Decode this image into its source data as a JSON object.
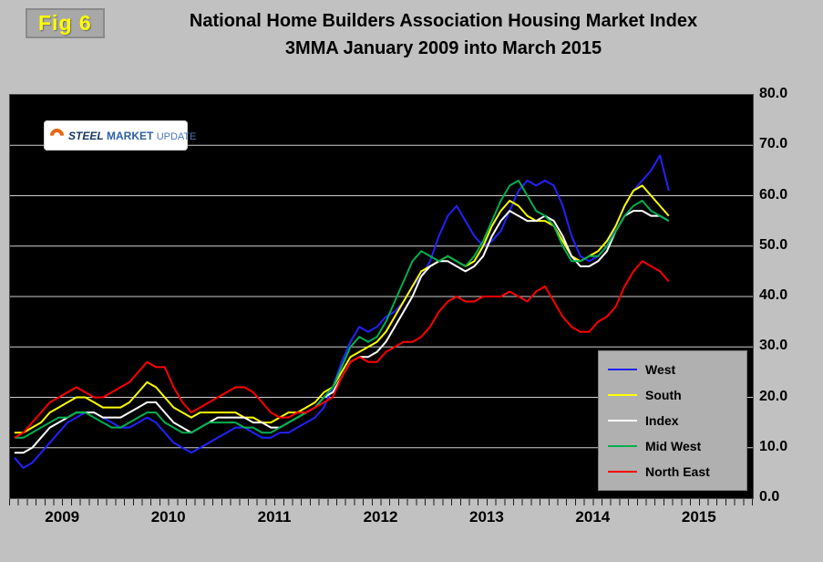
{
  "figure_label": "Fig 6",
  "title_line1": "National Home Builders Association Housing Market Index",
  "title_line2": "3MMA January 2009 into March 2015",
  "logo": {
    "word1": "STEEL",
    "word2": "MARKET",
    "word3": "UPDATE"
  },
  "colors": {
    "background": "#c1c1c1",
    "plot_background": "#000000",
    "gridline": "#cfcfcf",
    "west": "#2222ff",
    "south": "#ffff00",
    "index": "#ffffff",
    "midwest": "#00b050",
    "northeast": "#ff0000"
  },
  "chart_data": {
    "type": "line",
    "title": "National Home Builders Association Housing Market Index 3MMA January 2009 into March 2015",
    "ylim": [
      0,
      80
    ],
    "y_tick_step": 10,
    "y_tick_labels": [
      "80.0",
      "70.0",
      "60.0",
      "50.0",
      "40.0",
      "30.0",
      "20.0",
      "10.0",
      "0.0"
    ],
    "x_year_labels": [
      "2009",
      "2010",
      "2011",
      "2012",
      "2013",
      "2014",
      "2015"
    ],
    "x_axis_span_months": 84,
    "grid": "horizontal",
    "legend_position": "inside-bottom-right",
    "months": [
      "2009-01",
      "2009-02",
      "2009-03",
      "2009-04",
      "2009-05",
      "2009-06",
      "2009-07",
      "2009-08",
      "2009-09",
      "2009-10",
      "2009-11",
      "2009-12",
      "2010-01",
      "2010-02",
      "2010-03",
      "2010-04",
      "2010-05",
      "2010-06",
      "2010-07",
      "2010-08",
      "2010-09",
      "2010-10",
      "2010-11",
      "2010-12",
      "2011-01",
      "2011-02",
      "2011-03",
      "2011-04",
      "2011-05",
      "2011-06",
      "2011-07",
      "2011-08",
      "2011-09",
      "2011-10",
      "2011-11",
      "2011-12",
      "2012-01",
      "2012-02",
      "2012-03",
      "2012-04",
      "2012-05",
      "2012-06",
      "2012-07",
      "2012-08",
      "2012-09",
      "2012-10",
      "2012-11",
      "2012-12",
      "2013-01",
      "2013-02",
      "2013-03",
      "2013-04",
      "2013-05",
      "2013-06",
      "2013-07",
      "2013-08",
      "2013-09",
      "2013-10",
      "2013-11",
      "2013-12",
      "2014-01",
      "2014-02",
      "2014-03",
      "2014-04",
      "2014-05",
      "2014-06",
      "2014-07",
      "2014-08",
      "2014-09",
      "2014-10",
      "2014-11",
      "2014-12",
      "2015-01",
      "2015-02",
      "2015-03"
    ],
    "series": [
      {
        "name": "West",
        "color": "#2222ff",
        "values": [
          8,
          6,
          7,
          9,
          11,
          13,
          15,
          16,
          17,
          17,
          16,
          15,
          14,
          14,
          15,
          16,
          15,
          13,
          11,
          10,
          9,
          10,
          11,
          12,
          13,
          14,
          14,
          13,
          12,
          12,
          13,
          13,
          14,
          15,
          16,
          18,
          22,
          27,
          31,
          34,
          33,
          34,
          36,
          37,
          39,
          42,
          44,
          47,
          52,
          56,
          58,
          55,
          52,
          50,
          51,
          53,
          57,
          61,
          63,
          62,
          63,
          62,
          58,
          52,
          48,
          47,
          48,
          50,
          54,
          58,
          61,
          63,
          65,
          68,
          61
        ]
      },
      {
        "name": "South",
        "color": "#ffff00",
        "values": [
          13,
          13,
          14,
          15,
          17,
          18,
          19,
          20,
          20,
          19,
          18,
          18,
          18,
          19,
          21,
          23,
          22,
          20,
          18,
          17,
          16,
          17,
          17,
          17,
          17,
          17,
          16,
          16,
          15,
          15,
          16,
          17,
          17,
          18,
          19,
          21,
          22,
          25,
          28,
          29,
          30,
          31,
          33,
          36,
          39,
          42,
          45,
          46,
          47,
          48,
          47,
          46,
          47,
          50,
          54,
          57,
          59,
          58,
          56,
          55,
          55,
          54,
          51,
          48,
          47,
          48,
          49,
          51,
          54,
          58,
          61,
          62,
          60,
          58,
          56
        ]
      },
      {
        "name": "Index",
        "color": "#ffffff",
        "values": [
          9,
          9,
          10,
          12,
          14,
          15,
          16,
          17,
          17,
          17,
          16,
          16,
          16,
          17,
          18,
          19,
          19,
          17,
          15,
          14,
          13,
          14,
          15,
          16,
          16,
          16,
          16,
          15,
          15,
          14,
          14,
          15,
          16,
          17,
          18,
          20,
          21,
          24,
          27,
          28,
          28,
          29,
          31,
          34,
          37,
          40,
          44,
          46,
          47,
          47,
          46,
          45,
          46,
          48,
          52,
          55,
          57,
          56,
          55,
          55,
          56,
          55,
          52,
          48,
          46,
          46,
          47,
          49,
          53,
          56,
          57,
          57,
          56,
          56,
          55
        ]
      },
      {
        "name": "Mid West",
        "color": "#00b050",
        "values": [
          12,
          12,
          13,
          14,
          15,
          16,
          16,
          17,
          17,
          16,
          15,
          14,
          14,
          15,
          16,
          17,
          17,
          15,
          14,
          13,
          13,
          14,
          15,
          15,
          15,
          15,
          14,
          14,
          13,
          13,
          14,
          15,
          16,
          17,
          18,
          20,
          22,
          26,
          30,
          32,
          31,
          32,
          35,
          39,
          43,
          47,
          49,
          48,
          47,
          48,
          47,
          46,
          48,
          51,
          55,
          59,
          62,
          63,
          60,
          57,
          56,
          54,
          50,
          47,
          47,
          48,
          48,
          50,
          53,
          56,
          58,
          59,
          57,
          56,
          55
        ]
      },
      {
        "name": "North East",
        "color": "#ff0000",
        "values": [
          12,
          13,
          15,
          17,
          19,
          20,
          21,
          22,
          21,
          20,
          20,
          21,
          22,
          23,
          25,
          27,
          26,
          26,
          22,
          19,
          17,
          18,
          19,
          20,
          21,
          22,
          22,
          21,
          19,
          17,
          16,
          16,
          17,
          17,
          18,
          19,
          20,
          24,
          27,
          28,
          27,
          27,
          29,
          30,
          31,
          31,
          32,
          34,
          37,
          39,
          40,
          39,
          39,
          40,
          40,
          40,
          41,
          40,
          39,
          41,
          42,
          39,
          36,
          34,
          33,
          33,
          35,
          36,
          38,
          42,
          45,
          47,
          46,
          45,
          43
        ]
      }
    ]
  }
}
